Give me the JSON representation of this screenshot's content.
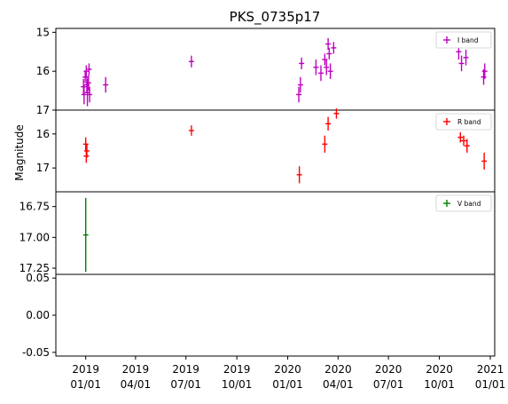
{
  "chart_data": {
    "type": "scatter",
    "title": "PKS_0735p17",
    "ylabel": "Magnitude",
    "x_tick_labels": [
      {
        "date": "2019-01-01",
        "line1": "2019",
        "line2": "01/01"
      },
      {
        "date": "2019-04-01",
        "line1": "2019",
        "line2": "04/01"
      },
      {
        "date": "2019-07-01",
        "line1": "2019",
        "line2": "07/01"
      },
      {
        "date": "2019-10-01",
        "line1": "2019",
        "line2": "10/01"
      },
      {
        "date": "2020-01-01",
        "line1": "2020",
        "line2": "01/01"
      },
      {
        "date": "2020-04-01",
        "line1": "2020",
        "line2": "04/01"
      },
      {
        "date": "2020-07-01",
        "line1": "2020",
        "line2": "07/01"
      },
      {
        "date": "2020-10-01",
        "line1": "2020",
        "line2": "10/01"
      },
      {
        "date": "2021-01-01",
        "line1": "2021",
        "line2": "01/01"
      }
    ],
    "xlim": [
      "2018-11-08",
      "2021-01-09"
    ],
    "panels": [
      {
        "band": "I band",
        "legend": "I band",
        "color": "#bf00bf",
        "ylim": [
          17.0,
          14.9
        ],
        "y_inverted": true,
        "yticks": [
          "15",
          "16",
          "17"
        ],
        "points": [
          {
            "x": "2018-12-28",
            "y": 16.4,
            "err": 0.2
          },
          {
            "x": "2018-12-29",
            "y": 16.6,
            "err": 0.25
          },
          {
            "x": "2018-12-31",
            "y": 16.15,
            "err": 0.15
          },
          {
            "x": "2019-01-02",
            "y": 16.0,
            "err": 0.15
          },
          {
            "x": "2019-01-03",
            "y": 16.35,
            "err": 0.2
          },
          {
            "x": "2019-01-04",
            "y": 16.55,
            "err": 0.35
          },
          {
            "x": "2019-01-06",
            "y": 16.3,
            "err": 0.2
          },
          {
            "x": "2019-01-07",
            "y": 15.95,
            "err": 0.15
          },
          {
            "x": "2019-01-08",
            "y": 16.6,
            "err": 0.2
          },
          {
            "x": "2019-02-06",
            "y": 16.35,
            "err": 0.2
          },
          {
            "x": "2019-07-11",
            "y": 15.75,
            "err": 0.15
          },
          {
            "x": "2020-01-21",
            "y": 16.6,
            "err": 0.2
          },
          {
            "x": "2020-01-24",
            "y": 16.35,
            "err": 0.2
          },
          {
            "x": "2020-01-26",
            "y": 15.8,
            "err": 0.15
          },
          {
            "x": "2020-02-21",
            "y": 15.9,
            "err": 0.2
          },
          {
            "x": "2020-03-01",
            "y": 16.05,
            "err": 0.2
          },
          {
            "x": "2020-03-08",
            "y": 15.7,
            "err": 0.15
          },
          {
            "x": "2020-03-11",
            "y": 15.9,
            "err": 0.2
          },
          {
            "x": "2020-03-14",
            "y": 15.3,
            "err": 0.15
          },
          {
            "x": "2020-03-16",
            "y": 15.55,
            "err": 0.15
          },
          {
            "x": "2020-03-18",
            "y": 16.0,
            "err": 0.2
          },
          {
            "x": "2020-03-24",
            "y": 15.4,
            "err": 0.15
          },
          {
            "x": "2020-11-05",
            "y": 15.5,
            "err": 0.2
          },
          {
            "x": "2020-11-10",
            "y": 15.8,
            "err": 0.2
          },
          {
            "x": "2020-11-18",
            "y": 15.65,
            "err": 0.2
          },
          {
            "x": "2020-12-20",
            "y": 16.15,
            "err": 0.2
          },
          {
            "x": "2020-12-22",
            "y": 16.0,
            "err": 0.2
          }
        ]
      },
      {
        "band": "R band",
        "legend": "R band",
        "color": "#ff0000",
        "ylim": [
          17.7,
          15.3
        ],
        "y_inverted": true,
        "yticks": [
          "16",
          "17"
        ],
        "points": [
          {
            "x": "2019-01-01",
            "y": 16.3,
            "err": 0.2
          },
          {
            "x": "2019-01-02",
            "y": 16.65,
            "err": 0.2
          },
          {
            "x": "2019-01-03",
            "y": 16.5,
            "err": 0.2
          },
          {
            "x": "2019-07-11",
            "y": 15.9,
            "err": 0.15
          },
          {
            "x": "2020-01-22",
            "y": 17.2,
            "err": 0.25
          },
          {
            "x": "2020-03-08",
            "y": 16.3,
            "err": 0.25
          },
          {
            "x": "2020-03-14",
            "y": 15.7,
            "err": 0.2
          },
          {
            "x": "2020-03-29",
            "y": 15.4,
            "err": 0.15
          },
          {
            "x": "2020-11-08",
            "y": 16.1,
            "err": 0.15
          },
          {
            "x": "2020-11-14",
            "y": 16.2,
            "err": 0.15
          },
          {
            "x": "2020-11-20",
            "y": 16.35,
            "err": 0.2
          },
          {
            "x": "2020-12-21",
            "y": 16.8,
            "err": 0.25
          }
        ]
      },
      {
        "band": "V band",
        "legend": "V band",
        "color": "#008000",
        "ylim": [
          17.3,
          16.63
        ],
        "y_inverted": true,
        "yticks": [
          "16.75",
          "17.00",
          "17.25"
        ],
        "points": [
          {
            "x": "2019-01-01",
            "y": 16.98,
            "err": 0.3
          }
        ]
      },
      {
        "band": "",
        "legend": "",
        "color": "#000000",
        "ylim": [
          -0.055,
          0.055
        ],
        "y_inverted": false,
        "yticks": [
          "0.05",
          "0.00",
          "-0.05"
        ],
        "ytick_values": [
          0.05,
          0.0,
          -0.05
        ],
        "points": []
      }
    ]
  }
}
